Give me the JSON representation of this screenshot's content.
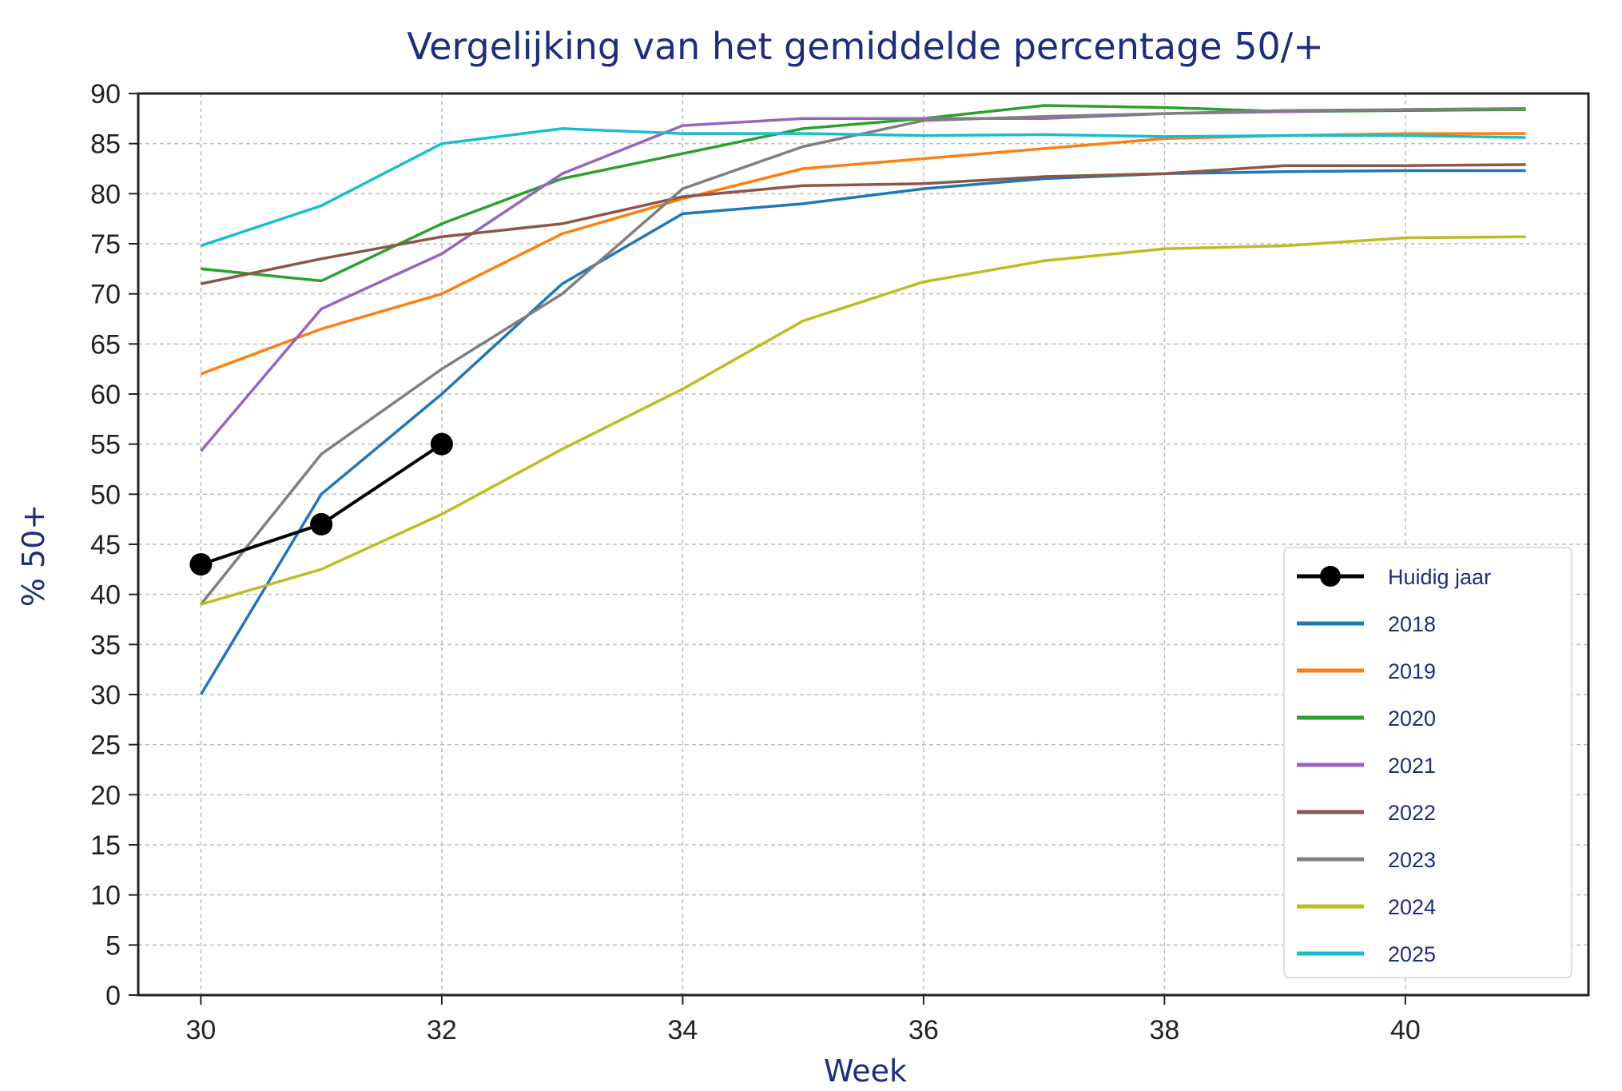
{
  "chart_data": {
    "type": "line",
    "title": "Vergelijking van het gemiddelde percentage 50/+",
    "xlabel": "Week",
    "ylabel": "% 50+",
    "xlim": [
      29.48,
      41.52
    ],
    "ylim": [
      0,
      90
    ],
    "xticks": [
      30,
      32,
      34,
      36,
      38,
      40
    ],
    "yticks": [
      0,
      5,
      10,
      15,
      20,
      25,
      30,
      35,
      40,
      45,
      50,
      55,
      60,
      65,
      70,
      75,
      80,
      85,
      90
    ],
    "grid": true,
    "legend_position": "lower-right",
    "title_color": "#1f2d7a",
    "series": [
      {
        "name": "Huidig jaar",
        "color": "#000000",
        "marker": true,
        "x": [
          30,
          31,
          32
        ],
        "y": [
          43,
          47,
          55
        ]
      },
      {
        "name": "2018",
        "color": "#1f77b4",
        "x": [
          30,
          31,
          32,
          33,
          34,
          35,
          36,
          37,
          38,
          39,
          40,
          41
        ],
        "y": [
          30,
          50,
          60,
          71,
          78,
          79,
          80.5,
          81.5,
          82,
          82.2,
          82.3,
          82.3
        ]
      },
      {
        "name": "2019",
        "color": "#ff7f0e",
        "x": [
          30,
          31,
          32,
          33,
          34,
          35,
          36,
          37,
          38,
          39,
          40,
          41
        ],
        "y": [
          62,
          66.5,
          70,
          76,
          79.5,
          82.5,
          83.5,
          84.5,
          85.5,
          85.8,
          86,
          86
        ]
      },
      {
        "name": "2020",
        "color": "#2ca02c",
        "x": [
          30,
          31,
          32,
          33,
          34,
          35,
          36,
          37,
          38,
          39,
          40,
          41
        ],
        "y": [
          72.5,
          71.3,
          77,
          81.5,
          84,
          86.5,
          87.5,
          88.8,
          88.6,
          88.2,
          88.3,
          88.4
        ]
      },
      {
        "name": "2021",
        "color": "#9467bd",
        "x": [
          30,
          31,
          32,
          33,
          34,
          35,
          36,
          37,
          38,
          39,
          40,
          41
        ],
        "y": [
          54.3,
          68.5,
          74,
          82,
          86.8,
          87.5,
          87.5,
          87.5,
          88,
          88.2,
          88.4,
          88.5
        ]
      },
      {
        "name": "2022",
        "color": "#8c564b",
        "x": [
          30,
          31,
          32,
          33,
          34,
          35,
          36,
          37,
          38,
          39,
          40,
          41
        ],
        "y": [
          71,
          73.5,
          75.7,
          77,
          79.7,
          80.8,
          81,
          81.7,
          82,
          82.8,
          82.8,
          82.9
        ]
      },
      {
        "name": "2023",
        "color": "#7f7f7f",
        "x": [
          30,
          31,
          32,
          33,
          34,
          35,
          36,
          37,
          38,
          39,
          40,
          41
        ],
        "y": [
          39,
          54,
          62.5,
          70,
          80.5,
          84.7,
          87.3,
          87.7,
          88,
          88.3,
          88.4,
          88.5
        ]
      },
      {
        "name": "2024",
        "color": "#bcbd22",
        "x": [
          30,
          31,
          32,
          33,
          34,
          35,
          36,
          37,
          38,
          39,
          40,
          41
        ],
        "y": [
          39,
          42.5,
          48,
          54.5,
          60.5,
          67.3,
          71.2,
          73.3,
          74.5,
          74.8,
          75.6,
          75.7
        ]
      },
      {
        "name": "2025",
        "color": "#17becf",
        "x": [
          30,
          31,
          32,
          33,
          34,
          35,
          36,
          37,
          38,
          39,
          40,
          41
        ],
        "y": [
          74.8,
          78.8,
          85,
          86.5,
          86,
          86,
          85.8,
          85.9,
          85.7,
          85.8,
          85.8,
          85.6
        ]
      }
    ]
  }
}
